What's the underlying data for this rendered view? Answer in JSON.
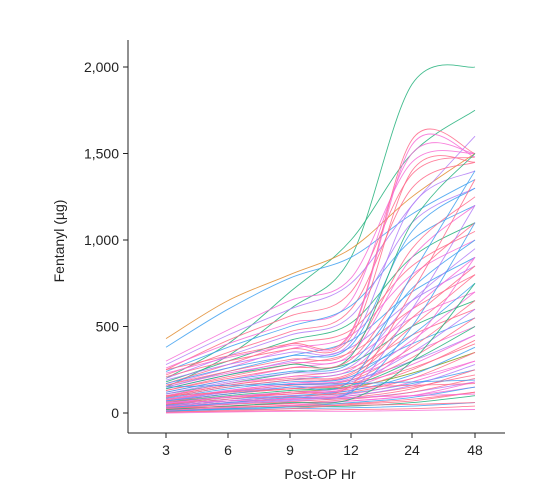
{
  "chart_data": {
    "type": "line",
    "title": "",
    "xlabel": "Post-OP Hr",
    "ylabel": "Fentanyl (µg)",
    "x": [
      3,
      6,
      9,
      12,
      24,
      48
    ],
    "x_tick_labels": [
      "3",
      "6",
      "9",
      "12",
      "24",
      "48"
    ],
    "y_ticks": [
      0,
      500,
      1000,
      1500,
      2000
    ],
    "y_tick_labels": [
      "0",
      "500",
      "1,000",
      "1,500",
      "2,000"
    ],
    "ylim": [
      -80,
      2150
    ],
    "grid": false,
    "legend": "none",
    "palette": [
      "#ff6a8a",
      "#f76bd6",
      "#b07cf7",
      "#3ea0f0",
      "#21b07a",
      "#e08a2c",
      "#7c9e18"
    ],
    "series": [
      {
        "color": "#21b07a",
        "values": [
          150,
          330,
          600,
          900,
          1900,
          2000
        ]
      },
      {
        "color": "#21b07a",
        "values": [
          200,
          400,
          700,
          1000,
          1500,
          1750
        ]
      },
      {
        "color": "#e08a2c",
        "values": [
          430,
          650,
          800,
          950,
          1250,
          1500
        ]
      },
      {
        "color": "#3ea0f0",
        "values": [
          380,
          600,
          780,
          900,
          1150,
          1350
        ]
      },
      {
        "color": "#f76bd6",
        "values": [
          300,
          480,
          650,
          780,
          1450,
          1500
        ]
      },
      {
        "color": "#ff6a8a",
        "values": [
          250,
          420,
          560,
          700,
          1380,
          1480
        ]
      },
      {
        "color": "#b07cf7",
        "values": [
          280,
          450,
          600,
          750,
          1200,
          1600
        ]
      },
      {
        "color": "#f76bd6",
        "values": [
          260,
          400,
          520,
          650,
          1500,
          1500
        ]
      },
      {
        "color": "#ff6a8a",
        "values": [
          220,
          350,
          470,
          600,
          1300,
          1450
        ]
      },
      {
        "color": "#3ea0f0",
        "values": [
          240,
          380,
          500,
          620,
          1000,
          1200
        ]
      },
      {
        "color": "#b07cf7",
        "values": [
          200,
          330,
          450,
          560,
          1100,
          1300
        ]
      },
      {
        "color": "#21b07a",
        "values": [
          180,
          300,
          420,
          520,
          900,
          1100
        ]
      },
      {
        "color": "#ff6a8a",
        "values": [
          170,
          280,
          400,
          480,
          850,
          1050
        ]
      },
      {
        "color": "#f76bd6",
        "values": [
          160,
          260,
          370,
          450,
          800,
          1000
        ]
      },
      {
        "color": "#3ea0f0",
        "values": [
          150,
          240,
          330,
          420,
          700,
          900
        ]
      },
      {
        "color": "#b07cf7",
        "values": [
          140,
          220,
          300,
          380,
          650,
          850
        ]
      },
      {
        "color": "#ff6a8a",
        "values": [
          130,
          210,
          280,
          350,
          600,
          800
        ]
      },
      {
        "color": "#f76bd6",
        "values": [
          120,
          190,
          260,
          320,
          550,
          700
        ]
      },
      {
        "color": "#21b07a",
        "values": [
          110,
          170,
          230,
          290,
          500,
          650
        ]
      },
      {
        "color": "#ff6a8a",
        "values": [
          100,
          160,
          210,
          260,
          450,
          600
        ]
      },
      {
        "color": "#3ea0f0",
        "values": [
          90,
          150,
          190,
          240,
          400,
          550
        ]
      },
      {
        "color": "#f76bd6",
        "values": [
          80,
          130,
          170,
          210,
          350,
          500
        ]
      },
      {
        "color": "#b07cf7",
        "values": [
          70,
          120,
          160,
          190,
          300,
          450
        ]
      },
      {
        "color": "#ff6a8a",
        "values": [
          60,
          110,
          140,
          170,
          260,
          400
        ]
      },
      {
        "color": "#7c9e18",
        "values": [
          50,
          90,
          120,
          150,
          230,
          350
        ]
      },
      {
        "color": "#f76bd6",
        "values": [
          45,
          80,
          110,
          130,
          200,
          300
        ]
      },
      {
        "color": "#3ea0f0",
        "values": [
          40,
          70,
          95,
          115,
          170,
          250
        ]
      },
      {
        "color": "#ff6a8a",
        "values": [
          35,
          60,
          80,
          100,
          150,
          220
        ]
      },
      {
        "color": "#b07cf7",
        "values": [
          30,
          50,
          70,
          85,
          120,
          180
        ]
      },
      {
        "color": "#f76bd6",
        "values": [
          25,
          40,
          55,
          70,
          100,
          150
        ]
      },
      {
        "color": "#ff6a8a",
        "values": [
          20,
          30,
          45,
          55,
          80,
          120
        ]
      },
      {
        "color": "#21b07a",
        "values": [
          15,
          25,
          35,
          40,
          60,
          100
        ]
      },
      {
        "color": "#3ea0f0",
        "values": [
          10,
          20,
          25,
          30,
          40,
          60
        ]
      },
      {
        "color": "#ff6a8a",
        "values": [
          5,
          10,
          15,
          20,
          25,
          40
        ]
      },
      {
        "color": "#f76bd6",
        "values": [
          0,
          5,
          10,
          10,
          15,
          20
        ]
      },
      {
        "color": "#ff6a8a",
        "values": [
          250,
          330,
          400,
          470,
          1580,
          1500
        ]
      },
      {
        "color": "#f76bd6",
        "values": [
          230,
          320,
          390,
          460,
          1550,
          1480
        ]
      },
      {
        "color": "#ff6a8a",
        "values": [
          210,
          300,
          370,
          440,
          1400,
          1450
        ]
      },
      {
        "color": "#b07cf7",
        "values": [
          190,
          280,
          350,
          410,
          1200,
          1400
        ]
      },
      {
        "color": "#3ea0f0",
        "values": [
          170,
          260,
          330,
          390,
          1050,
          1300
        ]
      },
      {
        "color": "#ff6a8a",
        "values": [
          160,
          240,
          310,
          360,
          950,
          1250
        ]
      },
      {
        "color": "#f76bd6",
        "values": [
          150,
          230,
          290,
          340,
          900,
          1200
        ]
      },
      {
        "color": "#21b07a",
        "values": [
          140,
          220,
          280,
          330,
          1100,
          1500
        ]
      },
      {
        "color": "#ff6a8a",
        "values": [
          130,
          200,
          260,
          310,
          780,
          1100
        ]
      },
      {
        "color": "#3ea0f0",
        "values": [
          120,
          190,
          240,
          290,
          720,
          1000
        ]
      },
      {
        "color": "#b07cf7",
        "values": [
          110,
          180,
          230,
          270,
          650,
          950
        ]
      },
      {
        "color": "#f76bd6",
        "values": [
          100,
          170,
          210,
          250,
          600,
          900
        ]
      },
      {
        "color": "#ff6a8a",
        "values": [
          95,
          160,
          200,
          230,
          550,
          850
        ]
      },
      {
        "color": "#ff6a8a",
        "values": [
          90,
          150,
          190,
          220,
          500,
          800
        ]
      },
      {
        "color": "#3ea0f0",
        "values": [
          85,
          140,
          180,
          210,
          450,
          750
        ]
      },
      {
        "color": "#f76bd6",
        "values": [
          80,
          130,
          170,
          200,
          420,
          700
        ]
      },
      {
        "color": "#ff6a8a",
        "values": [
          75,
          125,
          160,
          190,
          380,
          650
        ]
      },
      {
        "color": "#b07cf7",
        "values": [
          70,
          120,
          150,
          180,
          350,
          600
        ]
      },
      {
        "color": "#ff6a8a",
        "values": [
          65,
          110,
          140,
          170,
          320,
          550
        ]
      },
      {
        "color": "#21b07a",
        "values": [
          60,
          100,
          130,
          160,
          300,
          500
        ]
      },
      {
        "color": "#f76bd6",
        "values": [
          55,
          95,
          120,
          150,
          280,
          450
        ]
      },
      {
        "color": "#ff6a8a",
        "values": [
          50,
          90,
          110,
          140,
          250,
          420
        ]
      },
      {
        "color": "#3ea0f0",
        "values": [
          45,
          80,
          100,
          130,
          220,
          380
        ]
      },
      {
        "color": "#ff6a8a",
        "values": [
          40,
          70,
          95,
          120,
          200,
          350
        ]
      },
      {
        "color": "#f76bd6",
        "values": [
          35,
          60,
          85,
          110,
          180,
          300
        ]
      },
      {
        "color": "#b07cf7",
        "values": [
          30,
          55,
          75,
          100,
          160,
          280
        ]
      },
      {
        "color": "#ff6a8a",
        "values": [
          25,
          50,
          65,
          90,
          140,
          250
        ]
      },
      {
        "color": "#ff6a8a",
        "values": [
          20,
          40,
          55,
          80,
          120,
          200
        ]
      },
      {
        "color": "#f76bd6",
        "values": [
          15,
          30,
          45,
          70,
          100,
          180
        ]
      },
      {
        "color": "#3ea0f0",
        "values": [
          10,
          25,
          35,
          60,
          90,
          150
        ]
      },
      {
        "color": "#ff6a8a",
        "values": [
          5,
          15,
          25,
          50,
          70,
          120
        ]
      },
      {
        "color": "#21b07a",
        "values": [
          20,
          40,
          60,
          80,
          300,
          750
        ]
      },
      {
        "color": "#3ea0f0",
        "values": [
          30,
          60,
          90,
          120,
          500,
          1100
        ]
      },
      {
        "color": "#b07cf7",
        "values": [
          40,
          70,
          100,
          130,
          600,
          1200
        ]
      },
      {
        "color": "#f76bd6",
        "values": [
          60,
          90,
          120,
          150,
          400,
          900
        ]
      },
      {
        "color": "#ff6a8a",
        "values": [
          50,
          80,
          120,
          160,
          700,
          1350
        ]
      },
      {
        "color": "#3ea0f0",
        "values": [
          70,
          110,
          150,
          190,
          800,
          1400
        ]
      },
      {
        "color": "#ff6a8a",
        "values": [
          100,
          120,
          140,
          150,
          160,
          170
        ]
      },
      {
        "color": "#3ea0f0",
        "values": [
          150,
          160,
          165,
          170,
          180,
          190
        ]
      },
      {
        "color": "#f76bd6",
        "values": [
          60,
          70,
          80,
          90,
          100,
          110
        ]
      },
      {
        "color": "#ff6a8a",
        "values": [
          30,
          35,
          40,
          45,
          50,
          60
        ]
      }
    ]
  }
}
